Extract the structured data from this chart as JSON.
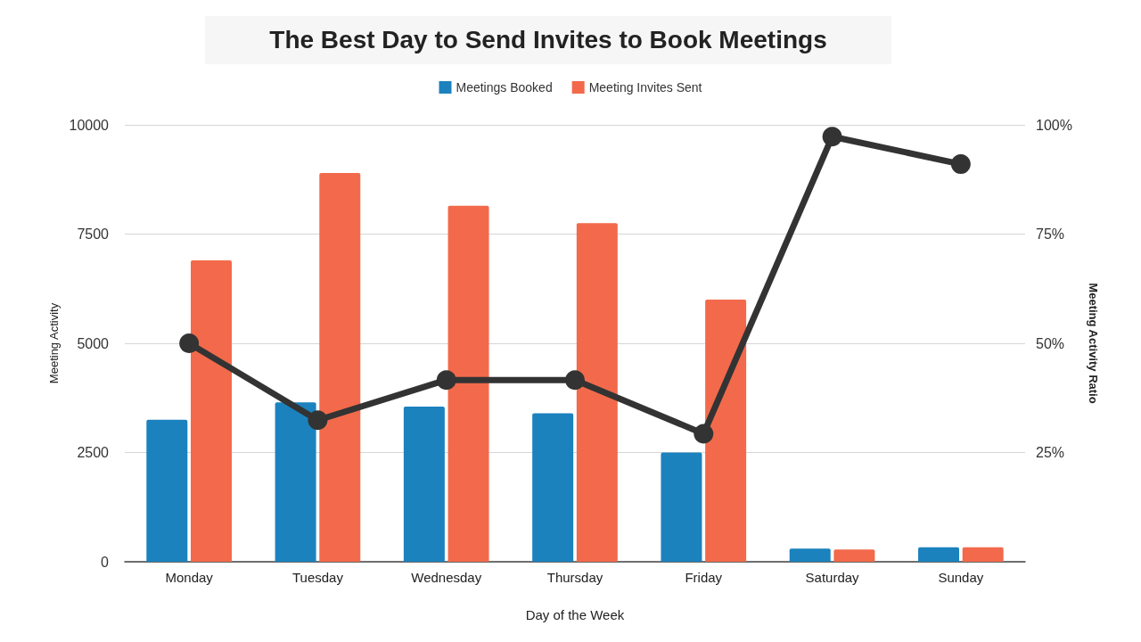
{
  "chart_data": {
    "type": "bar",
    "title": "The Best Day to Send Invites to Book Meetings",
    "xlabel": "Day of the Week",
    "ylabel": "Meeting Activity",
    "y2label": "Meeting Activity Ratio",
    "categories": [
      "Monday",
      "Tuesday",
      "Wednesday",
      "Thursday",
      "Friday",
      "Saturday",
      "Sunday"
    ],
    "series": [
      {
        "name": "Meetings Booked",
        "color": "#1b82be",
        "values": [
          3250,
          3650,
          3550,
          3400,
          2500,
          300,
          330
        ]
      },
      {
        "name": "Meeting Invites Sent",
        "color": "#f26a4b",
        "values": [
          6900,
          8900,
          8150,
          7750,
          6000,
          280,
          330
        ]
      },
      {
        "type": "line",
        "axis": "y2",
        "color": "#333333",
        "marker": "circle",
        "line_style": "solid",
        "values": [
          50,
          32.4,
          41.6,
          41.6,
          29.3,
          97.3,
          91
        ]
      }
    ],
    "ylim": [
      0,
      10000
    ],
    "yticks": [
      0,
      2500,
      5000,
      7500,
      10000
    ],
    "y2lim": [
      0,
      100
    ],
    "y2ticks": [
      {
        "value": 0,
        "label": null
      },
      {
        "value": 25,
        "label": "25%"
      },
      {
        "value": 50,
        "label": "50%"
      },
      {
        "value": 75,
        "label": "75%"
      },
      {
        "value": 100,
        "label": "100%"
      }
    ],
    "grid": "y",
    "legend": "top"
  }
}
